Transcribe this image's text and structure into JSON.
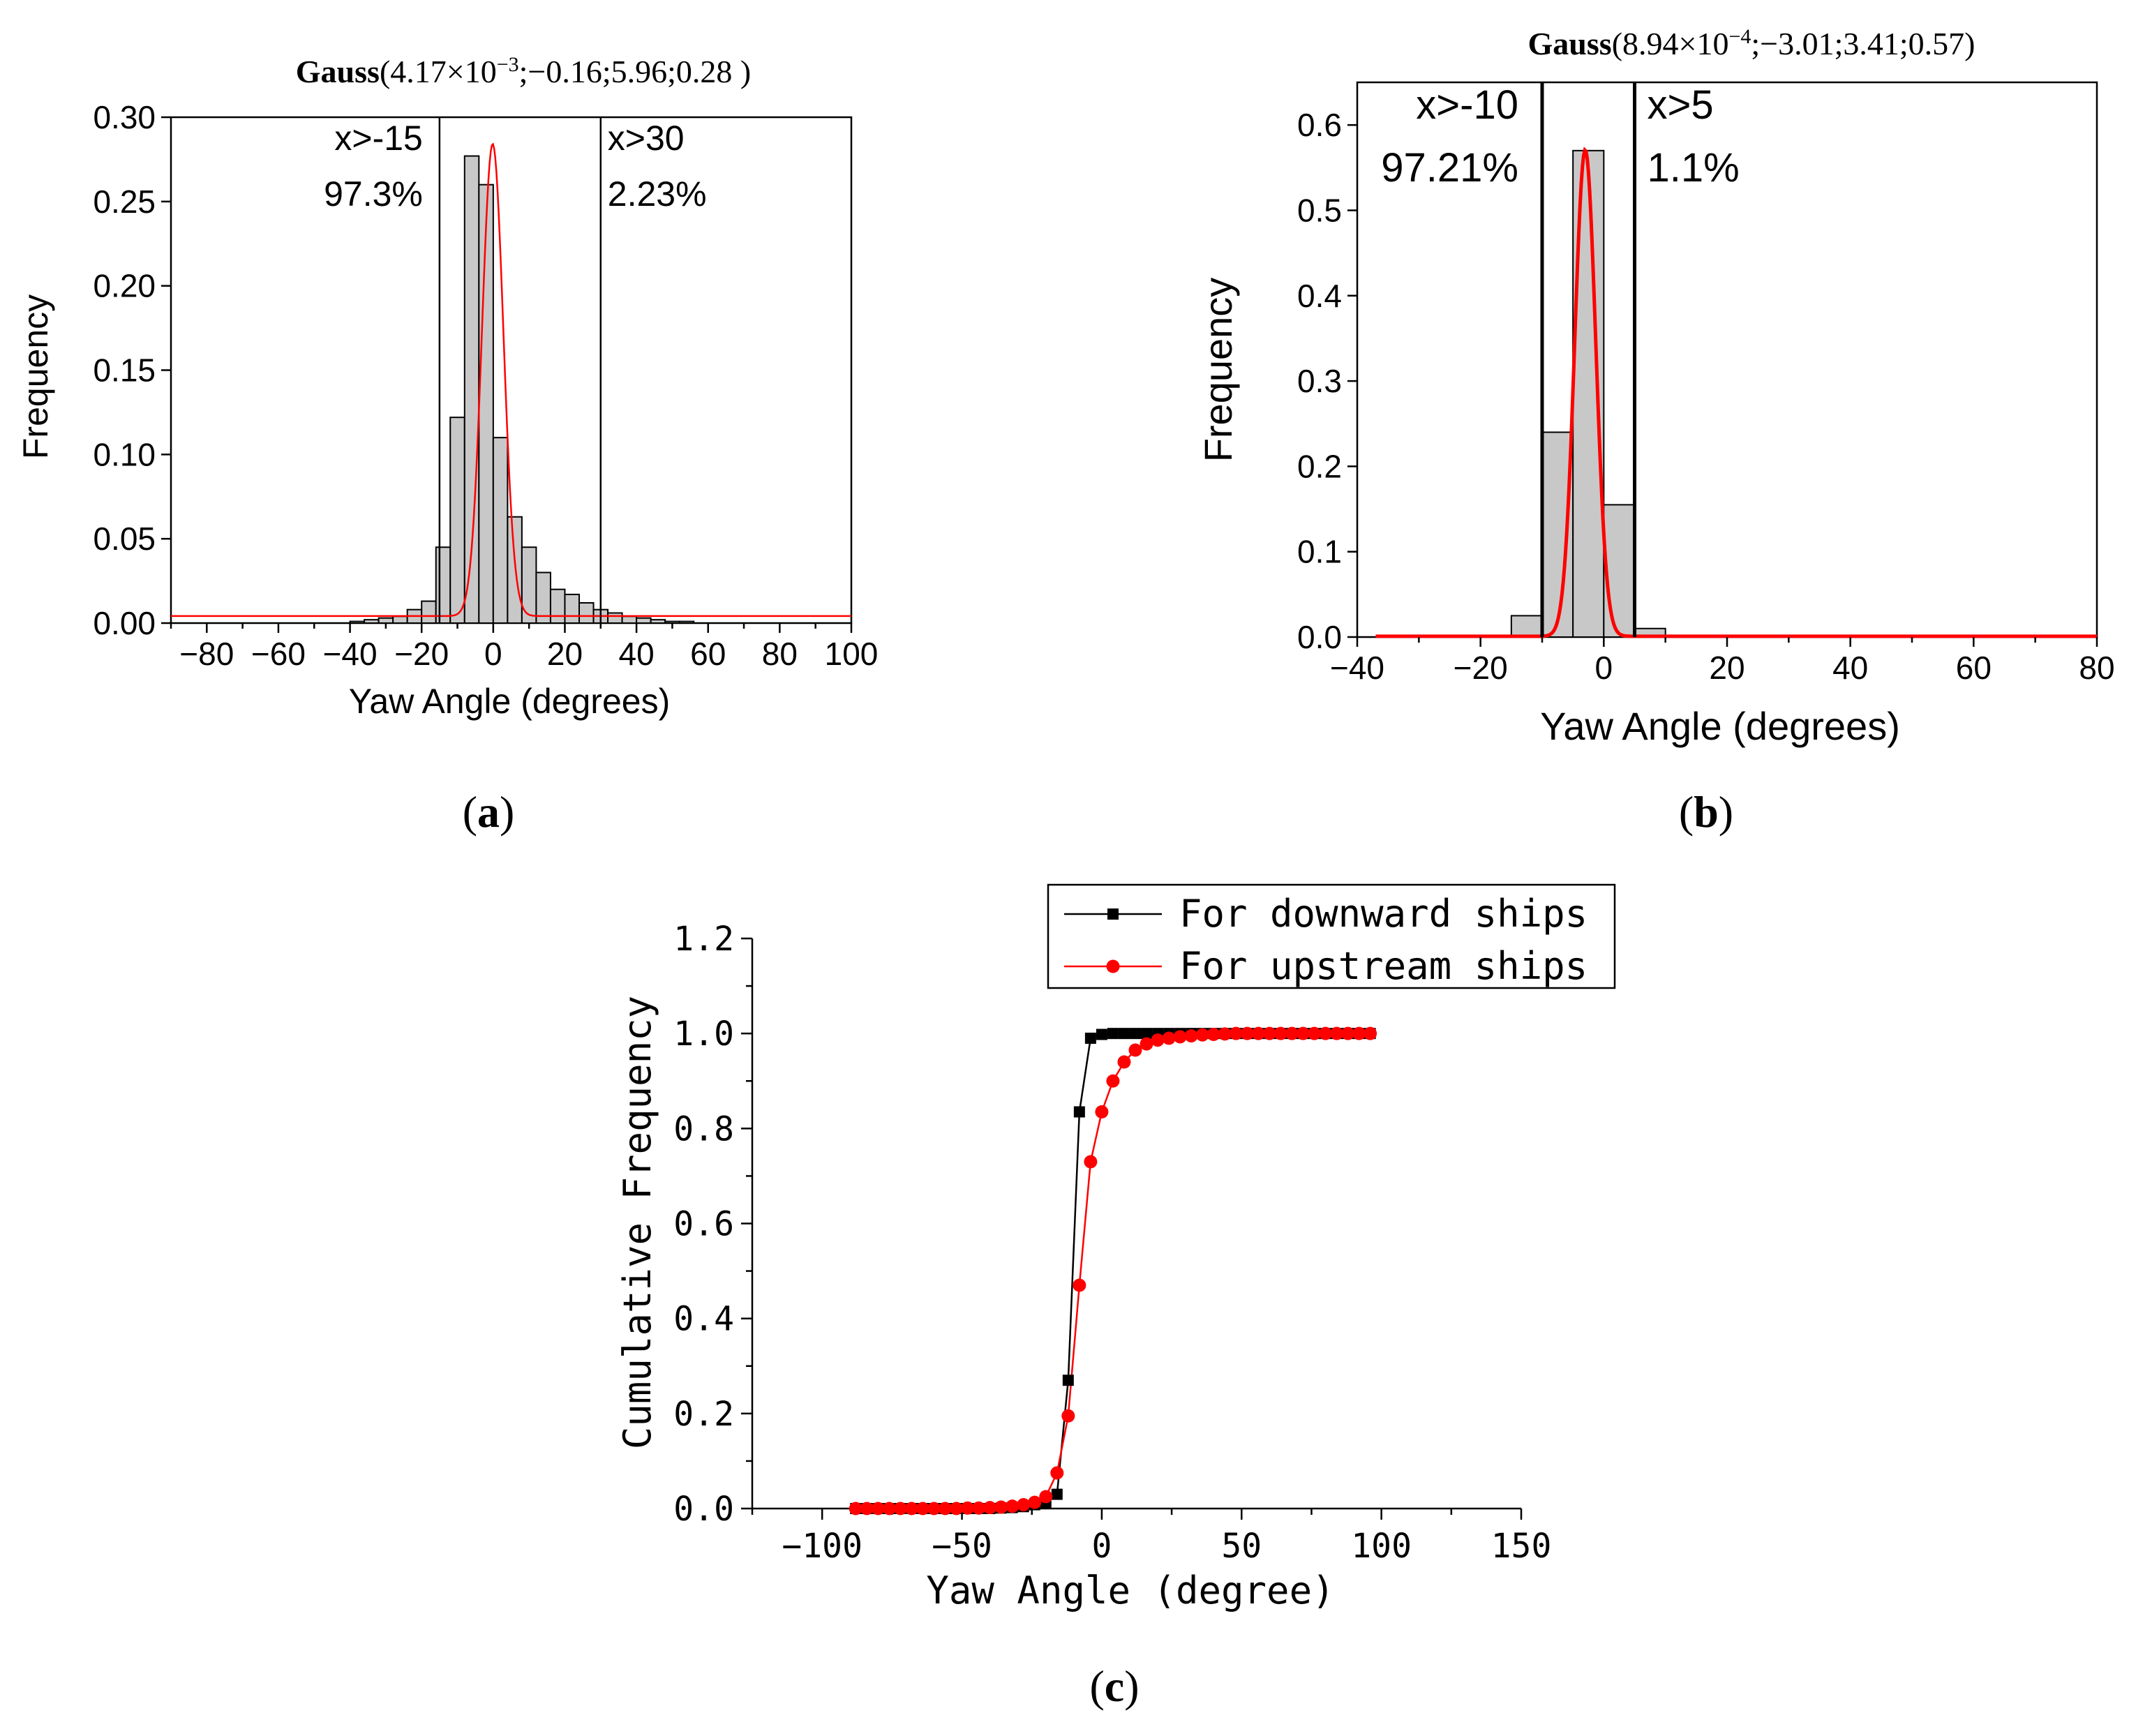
{
  "chart_data": [
    {
      "id": "a",
      "type": "bar",
      "panel_label": "(a)",
      "title_prefix": "Gauss",
      "title_params": "(4.17×10",
      "title_exp": "−3",
      "title_tail": ";−0.16;5.96;0.28 )",
      "xlabel": "Yaw Angle (degrees)",
      "ylabel": "Frequency",
      "xlim": [
        -90,
        100
      ],
      "ylim": [
        0,
        0.3
      ],
      "xticks": [
        -80,
        -60,
        -40,
        -20,
        0,
        20,
        40,
        60,
        80,
        100
      ],
      "yticks": [
        0.0,
        0.05,
        0.1,
        0.15,
        0.2,
        0.25,
        0.3
      ],
      "ytick_labels": [
        "0.00",
        "0.05",
        "0.10",
        "0.15",
        "0.20",
        "0.25",
        "0.30"
      ],
      "bin_width": 4,
      "bin_starts": [
        -40,
        -36,
        -32,
        -28,
        -24,
        -20,
        -16,
        -12,
        -8,
        -4,
        0,
        4,
        8,
        12,
        16,
        20,
        24,
        28,
        32,
        36,
        40,
        44,
        48,
        52
      ],
      "values": [
        0.001,
        0.002,
        0.003,
        0.004,
        0.008,
        0.013,
        0.045,
        0.122,
        0.277,
        0.26,
        0.11,
        0.063,
        0.045,
        0.03,
        0.02,
        0.017,
        0.012,
        0.008,
        0.006,
        0.004,
        0.003,
        0.002,
        0.001,
        0.001
      ],
      "gauss_fit": {
        "y0": 0.00417,
        "xc": -0.16,
        "w": 5.96,
        "A": 0.28
      },
      "vlines": [
        {
          "x": -15,
          "label": "x>-15",
          "pct": "97.3%"
        },
        {
          "x": 30,
          "label": "x>30",
          "pct": "2.23%"
        }
      ]
    },
    {
      "id": "b",
      "type": "bar",
      "panel_label": "(b)",
      "title_prefix": "Gauss",
      "title_params": "(8.94×10",
      "title_exp": "−4",
      "title_tail": ";−3.01;3.41;0.57)",
      "xlabel": "Yaw Angle (degrees)",
      "ylabel": "Frequency",
      "xlim": [
        -40,
        80
      ],
      "ylim": [
        0,
        0.65
      ],
      "xticks": [
        -40,
        -20,
        0,
        20,
        40,
        60,
        80
      ],
      "yticks": [
        0.0,
        0.1,
        0.2,
        0.3,
        0.4,
        0.5,
        0.6
      ],
      "ytick_labels": [
        "0.0",
        "0.1",
        "0.2",
        "0.3",
        "0.4",
        "0.5",
        "0.6"
      ],
      "bin_width": 5,
      "bin_starts": [
        -15,
        -10,
        -5,
        0,
        5
      ],
      "values": [
        0.025,
        0.24,
        0.57,
        0.155,
        0.01
      ],
      "gauss_fit": {
        "y0": 0.000894,
        "xc": -3.01,
        "w": 3.41,
        "A": 0.57
      },
      "vlines": [
        {
          "x": -10,
          "label": "x>-10",
          "pct": "97.21%"
        },
        {
          "x": 5,
          "label": "x>5",
          "pct": "1.1%"
        }
      ]
    },
    {
      "id": "c",
      "type": "line",
      "panel_label": "(c)",
      "xlabel": "Yaw Angle (degree)",
      "ylabel": "Cumulative Frequency",
      "xlim": [
        -125,
        150
      ],
      "ylim": [
        0,
        1.2
      ],
      "xticks": [
        -100,
        -50,
        0,
        50,
        100,
        150
      ],
      "yticks": [
        0.0,
        0.2,
        0.4,
        0.6,
        0.8,
        1.0,
        1.2
      ],
      "ytick_labels": [
        "0.0",
        "0.2",
        "0.4",
        "0.6",
        "0.8",
        "1.0",
        "1.2"
      ],
      "series": [
        {
          "name": "For downward ships",
          "color": "#000000",
          "marker": "square",
          "x": [
            -88,
            -84,
            -80,
            -76,
            -72,
            -68,
            -64,
            -60,
            -56,
            -52,
            -48,
            -44,
            -40,
            -36,
            -32,
            -28,
            -24,
            -20,
            -16,
            -12,
            -8,
            -4,
            0,
            4,
            8,
            12,
            16,
            20,
            24,
            28,
            32,
            36,
            40,
            44,
            48,
            52,
            56,
            60,
            64,
            68,
            72,
            76,
            80,
            84,
            88,
            92,
            96
          ],
          "values": [
            0,
            0,
            0,
            0,
            0,
            0,
            0,
            0,
            0,
            0,
            0,
            0,
            0,
            0.001,
            0.002,
            0.004,
            0.008,
            0.013,
            0.03,
            0.27,
            0.835,
            0.99,
            0.998,
            1,
            1,
            1,
            1,
            1,
            1,
            1,
            1,
            1,
            1,
            1,
            1,
            1,
            1,
            1,
            1,
            1,
            1,
            1,
            1,
            1,
            1,
            1,
            1
          ]
        },
        {
          "name": "For upstream ships",
          "color": "#ff0000",
          "marker": "circle",
          "x": [
            -88,
            -84,
            -80,
            -76,
            -72,
            -68,
            -64,
            -60,
            -56,
            -52,
            -48,
            -44,
            -40,
            -36,
            -32,
            -28,
            -24,
            -20,
            -16,
            -12,
            -8,
            -4,
            0,
            4,
            8,
            12,
            16,
            20,
            24,
            28,
            32,
            36,
            40,
            44,
            48,
            52,
            56,
            60,
            64,
            68,
            72,
            76,
            80,
            84,
            88,
            92,
            96
          ],
          "values": [
            0,
            0,
            0,
            0,
            0,
            0,
            0,
            0,
            0,
            0,
            0.001,
            0.001,
            0.002,
            0.003,
            0.005,
            0.008,
            0.013,
            0.025,
            0.075,
            0.195,
            0.47,
            0.73,
            0.835,
            0.9,
            0.94,
            0.965,
            0.978,
            0.986,
            0.99,
            0.993,
            0.995,
            0.997,
            0.998,
            0.999,
            1,
            1,
            1,
            1,
            1,
            1,
            1,
            1,
            1,
            1,
            1,
            1,
            1
          ]
        }
      ]
    }
  ]
}
